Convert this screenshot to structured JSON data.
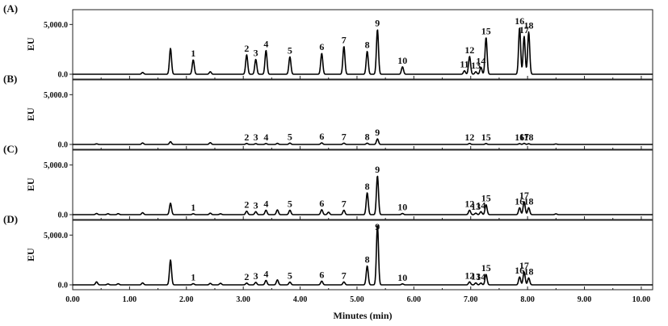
{
  "chart_data": {
    "type": "line",
    "xlabel": "Minutes (min)",
    "ylabel": "EU",
    "xlim": [
      0,
      10.2
    ],
    "ylim": [
      0,
      7000
    ],
    "x_ticks": [
      0,
      1,
      2,
      3,
      4,
      5,
      6,
      7,
      8,
      9,
      10
    ],
    "x_tick_labels": [
      "0.00",
      "1.00",
      "2.00",
      "3.00",
      "4.00",
      "5.00",
      "6.00",
      "7.00",
      "8.00",
      "9.00",
      "10.00"
    ],
    "y_tick_labels": [
      "0.0",
      "5,000.0"
    ],
    "y_ticks": [
      0,
      5000
    ],
    "panels": [
      {
        "label": "(A)",
        "peaks": [
          {
            "t": 1.23,
            "h": 180
          },
          {
            "t": 1.72,
            "h": 2600
          },
          {
            "t": 2.12,
            "h": 1450,
            "label": "1"
          },
          {
            "t": 2.42,
            "h": 250
          },
          {
            "t": 3.06,
            "h": 1950,
            "label": "2"
          },
          {
            "t": 3.22,
            "h": 1500,
            "label": "3"
          },
          {
            "t": 3.4,
            "h": 2400,
            "label": "4"
          },
          {
            "t": 3.82,
            "h": 1750,
            "label": "5"
          },
          {
            "t": 4.38,
            "h": 2100,
            "label": "6"
          },
          {
            "t": 4.77,
            "h": 2800,
            "label": "7"
          },
          {
            "t": 5.18,
            "h": 2300,
            "label": "8"
          },
          {
            "t": 5.36,
            "h": 4500,
            "label": "9"
          },
          {
            "t": 5.8,
            "h": 750,
            "label": "10"
          },
          {
            "t": 6.89,
            "h": 350,
            "label": "11"
          },
          {
            "t": 6.98,
            "h": 1800,
            "label": "12"
          },
          {
            "t": 7.09,
            "h": 250,
            "label": "13"
          },
          {
            "t": 7.18,
            "h": 700,
            "label": "14"
          },
          {
            "t": 7.27,
            "h": 3700,
            "label": "15"
          },
          {
            "t": 7.86,
            "h": 4700,
            "label": "16"
          },
          {
            "t": 7.94,
            "h": 3800,
            "label": "17"
          },
          {
            "t": 8.02,
            "h": 4250,
            "label": "18"
          }
        ]
      },
      {
        "label": "(B)",
        "peaks": [
          {
            "t": 0.42,
            "h": 60
          },
          {
            "t": 1.23,
            "h": 150
          },
          {
            "t": 1.72,
            "h": 280
          },
          {
            "t": 2.42,
            "h": 180
          },
          {
            "t": 3.06,
            "h": 100,
            "label": "2"
          },
          {
            "t": 3.22,
            "h": 80,
            "label": "3"
          },
          {
            "t": 3.4,
            "h": 90,
            "label": "4"
          },
          {
            "t": 3.6,
            "h": 110
          },
          {
            "t": 3.82,
            "h": 140,
            "label": "5"
          },
          {
            "t": 4.38,
            "h": 160,
            "label": "6"
          },
          {
            "t": 4.77,
            "h": 130,
            "label": "7"
          },
          {
            "t": 5.18,
            "h": 130,
            "label": "8"
          },
          {
            "t": 5.36,
            "h": 560,
            "label": "9"
          },
          {
            "t": 6.98,
            "h": 100,
            "label": "12"
          },
          {
            "t": 7.27,
            "h": 90,
            "label": "15"
          },
          {
            "t": 7.86,
            "h": 80,
            "label": "16"
          },
          {
            "t": 7.94,
            "h": 110,
            "label": "17"
          },
          {
            "t": 8.02,
            "h": 70,
            "label": "18"
          },
          {
            "t": 8.5,
            "h": 50
          }
        ]
      },
      {
        "label": "(C)",
        "peaks": [
          {
            "t": 0.42,
            "h": 120
          },
          {
            "t": 0.62,
            "h": 90
          },
          {
            "t": 0.8,
            "h": 100
          },
          {
            "t": 1.23,
            "h": 200
          },
          {
            "t": 1.72,
            "h": 1150
          },
          {
            "t": 2.12,
            "h": 90,
            "label": "1"
          },
          {
            "t": 2.42,
            "h": 150
          },
          {
            "t": 2.6,
            "h": 90
          },
          {
            "t": 3.06,
            "h": 350,
            "label": "2"
          },
          {
            "t": 3.22,
            "h": 300,
            "label": "3"
          },
          {
            "t": 3.4,
            "h": 450,
            "label": "4"
          },
          {
            "t": 3.6,
            "h": 480
          },
          {
            "t": 3.82,
            "h": 450,
            "label": "5"
          },
          {
            "t": 4.38,
            "h": 500,
            "label": "6"
          },
          {
            "t": 4.5,
            "h": 250
          },
          {
            "t": 4.77,
            "h": 450,
            "label": "7"
          },
          {
            "t": 5.18,
            "h": 2200,
            "label": "8"
          },
          {
            "t": 5.36,
            "h": 3900,
            "label": "9"
          },
          {
            "t": 5.8,
            "h": 120,
            "label": "10"
          },
          {
            "t": 6.98,
            "h": 450,
            "label": "12"
          },
          {
            "t": 7.09,
            "h": 150,
            "label": "13"
          },
          {
            "t": 7.18,
            "h": 300,
            "label": "14"
          },
          {
            "t": 7.27,
            "h": 1000,
            "label": "15"
          },
          {
            "t": 7.86,
            "h": 700,
            "label": "16"
          },
          {
            "t": 7.94,
            "h": 1300,
            "label": "17"
          },
          {
            "t": 8.02,
            "h": 700,
            "label": "18"
          },
          {
            "t": 8.5,
            "h": 80
          }
        ]
      },
      {
        "label": "(D)",
        "peaks": [
          {
            "t": 0.42,
            "h": 300
          },
          {
            "t": 0.62,
            "h": 90
          },
          {
            "t": 0.8,
            "h": 110
          },
          {
            "t": 1.23,
            "h": 200
          },
          {
            "t": 1.72,
            "h": 2500
          },
          {
            "t": 2.12,
            "h": 120,
            "label": "1"
          },
          {
            "t": 2.42,
            "h": 150
          },
          {
            "t": 2.6,
            "h": 160
          },
          {
            "t": 3.06,
            "h": 180,
            "label": "2"
          },
          {
            "t": 3.22,
            "h": 250,
            "label": "3"
          },
          {
            "t": 3.4,
            "h": 450,
            "label": "4"
          },
          {
            "t": 3.6,
            "h": 500
          },
          {
            "t": 3.82,
            "h": 280,
            "label": "5"
          },
          {
            "t": 4.38,
            "h": 380,
            "label": "6"
          },
          {
            "t": 4.77,
            "h": 300,
            "label": "7"
          },
          {
            "t": 5.18,
            "h": 1900,
            "label": "8"
          },
          {
            "t": 5.36,
            "h": 6000,
            "label": "9"
          },
          {
            "t": 5.8,
            "h": 100,
            "label": "10"
          },
          {
            "t": 6.98,
            "h": 300,
            "label": "12"
          },
          {
            "t": 7.09,
            "h": 200,
            "label": "13"
          },
          {
            "t": 7.18,
            "h": 180,
            "label": "14"
          },
          {
            "t": 7.27,
            "h": 1050,
            "label": "15"
          },
          {
            "t": 7.86,
            "h": 800,
            "label": "16"
          },
          {
            "t": 7.94,
            "h": 1300,
            "label": "17"
          },
          {
            "t": 8.02,
            "h": 700,
            "label": "18"
          }
        ]
      }
    ]
  }
}
